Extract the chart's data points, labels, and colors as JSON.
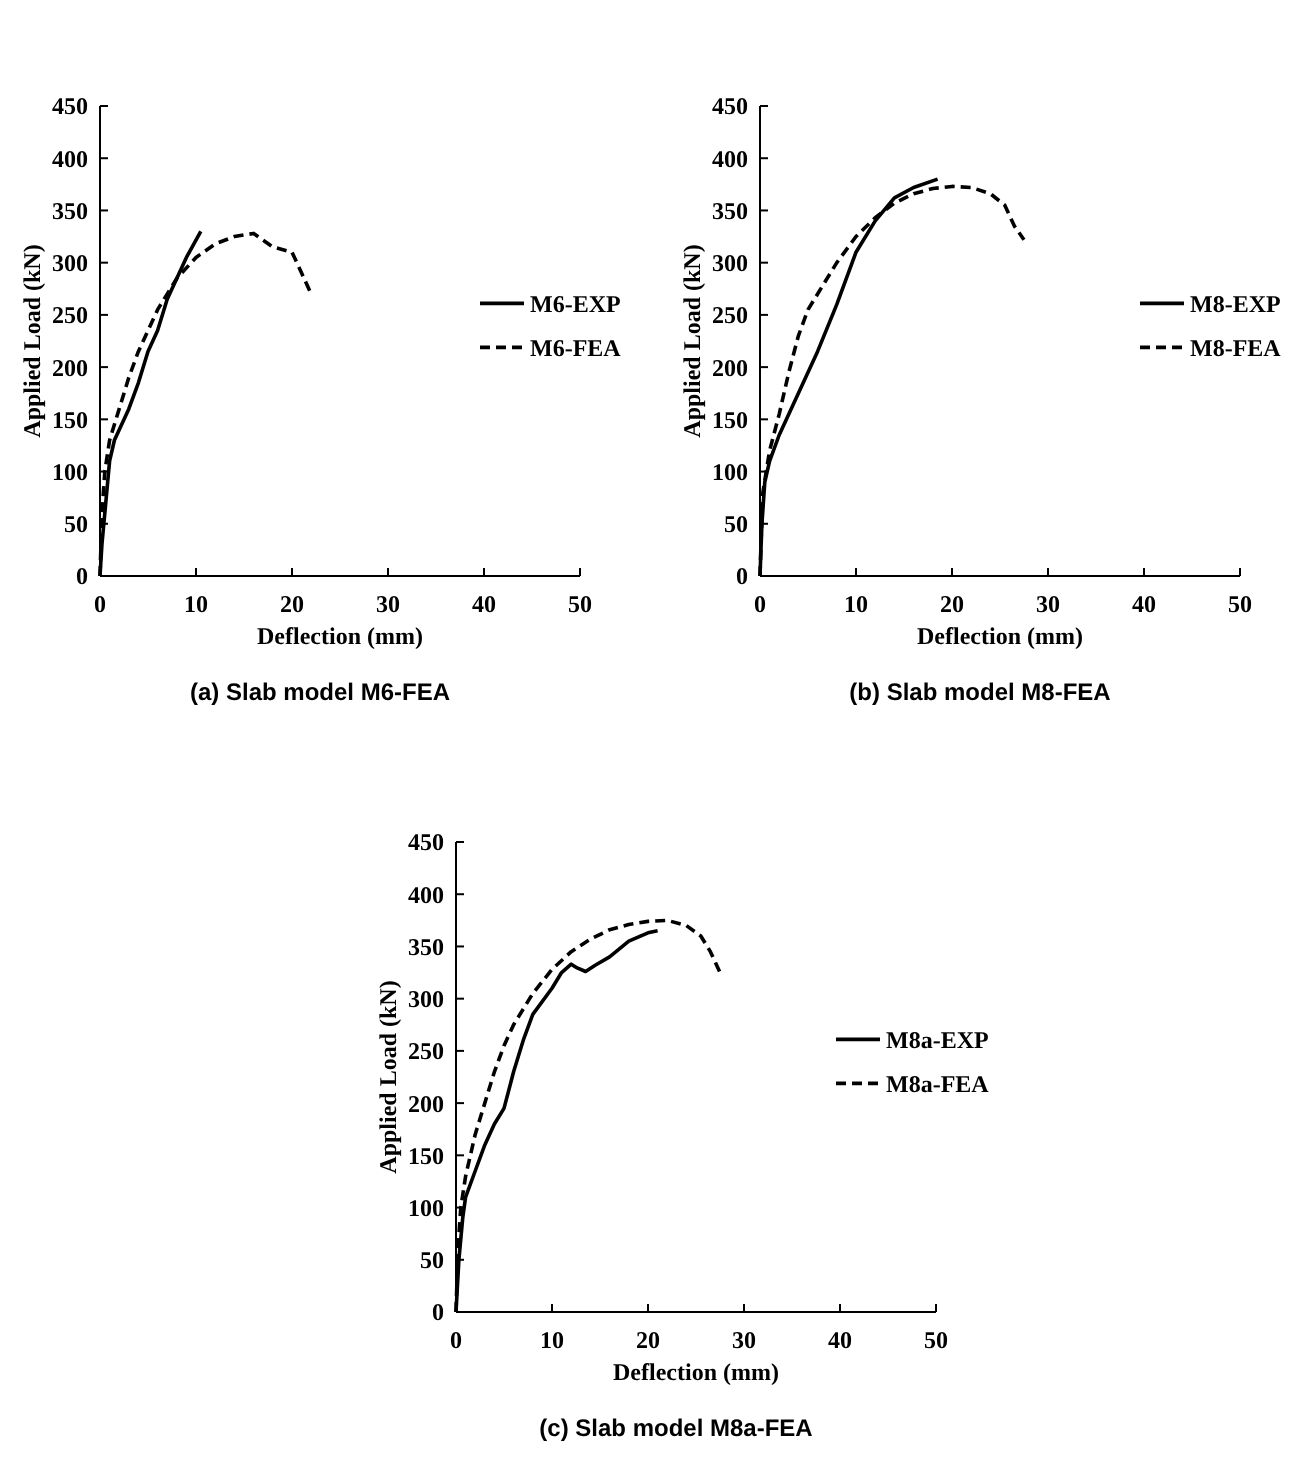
{
  "chart_data": [
    {
      "type": "line",
      "title": "(a) Slab model M6-FEA",
      "xlabel": "Deflection (mm)",
      "ylabel": "Applied Load (kN)",
      "xlim": [
        0,
        50
      ],
      "xticks": [
        0,
        10,
        20,
        30,
        40,
        50
      ],
      "ylim": [
        0,
        450
      ],
      "yticks": [
        0,
        50,
        100,
        150,
        200,
        250,
        300,
        350,
        400,
        450
      ],
      "grid": false,
      "legend": "right",
      "marker": "none",
      "series": [
        {
          "name": "M6-EXP",
          "color": "#000000",
          "line_style": "solid",
          "x": [
            0,
            0.2,
            0.5,
            1,
            1.5,
            3,
            4,
            5,
            6,
            7,
            9,
            10.5
          ],
          "values": [
            0,
            30,
            60,
            110,
            130,
            160,
            185,
            215,
            235,
            265,
            305,
            330
          ]
        },
        {
          "name": "M6-FEA",
          "color": "#000000",
          "line_style": "dashed",
          "x": [
            0,
            0.2,
            0.5,
            1,
            2,
            3,
            4,
            5,
            6,
            8,
            10,
            12,
            14,
            16,
            18,
            20,
            21,
            22
          ],
          "values": [
            0,
            60,
            100,
            130,
            160,
            190,
            215,
            235,
            255,
            285,
            305,
            318,
            325,
            328,
            315,
            310,
            290,
            270
          ]
        }
      ]
    },
    {
      "type": "line",
      "title": "(b) Slab model M8-FEA",
      "xlabel": "Deflection (mm)",
      "ylabel": "Applied Load (kN)",
      "xlim": [
        0,
        50
      ],
      "xticks": [
        0,
        10,
        20,
        30,
        40,
        50
      ],
      "ylim": [
        0,
        450
      ],
      "yticks": [
        0,
        50,
        100,
        150,
        200,
        250,
        300,
        350,
        400,
        450
      ],
      "grid": false,
      "legend": "right",
      "marker": "none",
      "series": [
        {
          "name": "M8-EXP",
          "color": "#000000",
          "line_style": "solid",
          "x": [
            0,
            0.2,
            0.5,
            1,
            2,
            4,
            6,
            8,
            10,
            12,
            14,
            16,
            18.5
          ],
          "values": [
            0,
            50,
            90,
            110,
            135,
            175,
            215,
            260,
            310,
            340,
            362,
            372,
            380
          ]
        },
        {
          "name": "M8-FEA",
          "color": "#000000",
          "line_style": "dashed",
          "x": [
            0,
            0.1,
            0.3,
            1,
            2,
            3,
            4,
            5,
            6,
            8,
            10,
            12,
            14,
            16,
            18,
            20,
            22,
            24,
            25.5,
            26.5,
            27.5
          ],
          "values": [
            0,
            30,
            80,
            120,
            155,
            195,
            230,
            255,
            270,
            300,
            325,
            343,
            357,
            366,
            371,
            373,
            372,
            366,
            355,
            335,
            322
          ]
        }
      ]
    },
    {
      "type": "line",
      "title": "(c) Slab model M8a-FEA",
      "xlabel": "Deflection (mm)",
      "ylabel": "Applied Load (kN)",
      "xlim": [
        0,
        50
      ],
      "xticks": [
        0,
        10,
        20,
        30,
        40,
        50
      ],
      "ylim": [
        0,
        450
      ],
      "yticks": [
        0,
        50,
        100,
        150,
        200,
        250,
        300,
        350,
        400,
        450
      ],
      "grid": false,
      "legend": "right",
      "marker": "none",
      "series": [
        {
          "name": "M8a-EXP",
          "color": "#000000",
          "line_style": "solid",
          "x": [
            0,
            0.3,
            0.7,
            1,
            2,
            3,
            4,
            5,
            6,
            7,
            8,
            10,
            11,
            12,
            12.5,
            13.5,
            14.5,
            16,
            18,
            20,
            21
          ],
          "values": [
            0,
            50,
            90,
            110,
            135,
            160,
            180,
            195,
            230,
            260,
            285,
            310,
            325,
            333,
            330,
            326,
            332,
            340,
            355,
            363,
            365
          ]
        },
        {
          "name": "M8a-FEA",
          "color": "#000000",
          "line_style": "dashed",
          "x": [
            0,
            0.2,
            0.5,
            1,
            2,
            3,
            4,
            5,
            6,
            8,
            10,
            12,
            14,
            16,
            18,
            20,
            22,
            24,
            25.5,
            26.5,
            27.5
          ],
          "values": [
            0,
            60,
            100,
            130,
            170,
            200,
            230,
            255,
            275,
            305,
            328,
            345,
            357,
            366,
            371,
            374,
            375,
            370,
            360,
            345,
            325
          ]
        }
      ]
    }
  ]
}
